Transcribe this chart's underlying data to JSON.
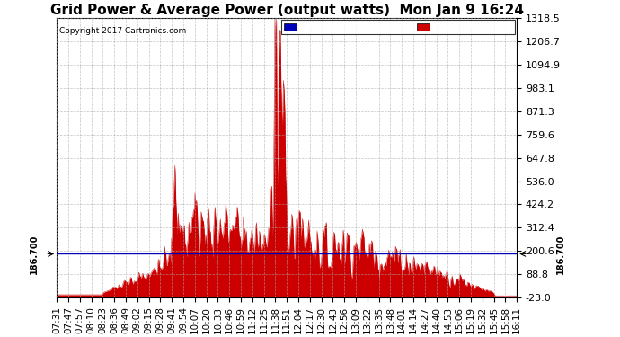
{
  "title": "Grid Power & Average Power (output watts)  Mon Jan 9 16:24",
  "copyright": "Copyright 2017 Cartronics.com",
  "ytick_labels": [
    "1318.5",
    "1206.7",
    "1094.9",
    "983.1",
    "871.3",
    "759.6",
    "647.8",
    "536.0",
    "424.2",
    "312.4",
    "200.6",
    "88.8",
    "-23.0"
  ],
  "ytick_values": [
    1318.5,
    1206.7,
    1094.9,
    983.1,
    871.3,
    759.6,
    647.8,
    536.0,
    424.2,
    312.4,
    200.6,
    88.8,
    -23.0
  ],
  "ymin": -23.0,
  "ymax": 1318.5,
  "avg_line": 186.7,
  "xtick_labels": [
    "07:31",
    "07:47",
    "07:57",
    "08:10",
    "08:23",
    "08:36",
    "08:49",
    "09:02",
    "09:15",
    "09:28",
    "09:41",
    "09:54",
    "10:07",
    "10:20",
    "10:33",
    "10:46",
    "10:59",
    "11:12",
    "11:25",
    "11:38",
    "11:51",
    "12:04",
    "12:17",
    "12:30",
    "12:43",
    "12:56",
    "13:09",
    "13:22",
    "13:35",
    "13:48",
    "14:01",
    "14:14",
    "14:27",
    "14:40",
    "14:53",
    "15:06",
    "15:19",
    "15:32",
    "15:45",
    "15:58",
    "16:11"
  ],
  "legend_avg_color": "#0000bb",
  "legend_grid_color": "#cc0000",
  "fill_color": "#cc0000",
  "line_color": "#cc0000",
  "avg_line_color": "#0000bb",
  "background_color": "#ffffff",
  "grid_color": "#aaaaaa",
  "title_fontsize": 11,
  "tick_fontsize": 8,
  "avg_annotation": "186.700"
}
